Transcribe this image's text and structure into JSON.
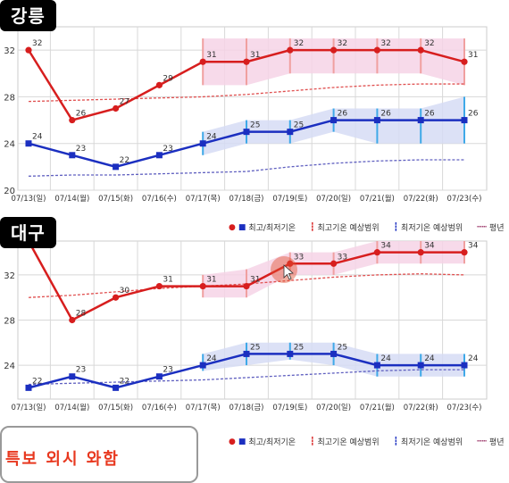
{
  "labels": {
    "top_city": "강릉",
    "bottom_city": "대구",
    "bottom_text": "특보 외시 와함",
    "legend": [
      "최고/최저기온",
      "최고기온 예상범위",
      "최저기온 예상범위",
      "평년"
    ]
  },
  "colors": {
    "max": "#d71e1e",
    "min": "#1b2fc0",
    "max_band": "#f6d4e6",
    "min_band": "#d6dcf5",
    "max_range": "#f0a0a0",
    "min_range": "#3fa9e8",
    "normal_max": "#e05050",
    "normal_min": "#6060c0"
  },
  "chart_data": [
    {
      "type": "line",
      "title": "강릉",
      "categories": [
        "07/13(일)",
        "07/14(월)",
        "07/15(화)",
        "07/16(수)",
        "07/17(목)",
        "07/18(금)",
        "07/19(토)",
        "07/20(일)",
        "07/21(월)",
        "07/22(화)",
        "07/23(수)"
      ],
      "ylim": [
        20,
        34
      ],
      "yticks": [
        20,
        24,
        28,
        32
      ],
      "grid": true,
      "series": [
        {
          "name": "최고/최저기온",
          "role": "max",
          "values": [
            32,
            26,
            27,
            29,
            31,
            31,
            32,
            32,
            32,
            32,
            31
          ]
        },
        {
          "name": "최고/최저기온",
          "role": "min",
          "values": [
            24,
            23,
            22,
            23,
            24,
            25,
            25,
            26,
            26,
            26,
            26
          ]
        },
        {
          "name": "평년",
          "role": "normal_max",
          "values": [
            27.6,
            27.7,
            27.8,
            27.9,
            28.0,
            28.2,
            28.5,
            28.8,
            29.0,
            29.1,
            29.1
          ]
        },
        {
          "name": "평년",
          "role": "normal_min",
          "values": [
            21.2,
            21.3,
            21.3,
            21.4,
            21.5,
            21.6,
            22.0,
            22.3,
            22.5,
            22.6,
            22.6
          ]
        }
      ],
      "max_range": [
        null,
        null,
        null,
        null,
        [
          29,
          33
        ],
        [
          29,
          33
        ],
        [
          30,
          33
        ],
        [
          30,
          33
        ],
        [
          30,
          33
        ],
        [
          30,
          33
        ],
        [
          29,
          33
        ]
      ],
      "min_range": [
        null,
        null,
        null,
        null,
        [
          23,
          25
        ],
        [
          24,
          26
        ],
        [
          24,
          26
        ],
        [
          25,
          27
        ],
        [
          24,
          27
        ],
        [
          24,
          27
        ],
        [
          24,
          28
        ]
      ]
    },
    {
      "type": "line",
      "title": "대구",
      "categories": [
        "07/13(일)",
        "07/14(월)",
        "07/15(화)",
        "07/16(수)",
        "07/17(목)",
        "07/18(금)",
        "07/19(토)",
        "07/20(일)",
        "07/21(월)",
        "07/22(화)",
        "07/23(수)"
      ],
      "ylim": [
        21,
        35
      ],
      "yticks": [
        24,
        28,
        32
      ],
      "grid": true,
      "series": [
        {
          "name": "최고/최저기온",
          "role": "max",
          "values": [
            35,
            28,
            30,
            31,
            31,
            31,
            33,
            33,
            34,
            34,
            34
          ]
        },
        {
          "name": "최고/최저기온",
          "role": "min",
          "values": [
            22,
            23,
            22,
            23,
            24,
            25,
            25,
            25,
            24,
            24,
            24
          ]
        },
        {
          "name": "평년",
          "role": "normal_max",
          "values": [
            30.0,
            30.2,
            30.5,
            30.8,
            31.0,
            31.2,
            31.5,
            31.8,
            32.0,
            32.1,
            32.0
          ]
        },
        {
          "name": "평년",
          "role": "normal_min",
          "values": [
            22.3,
            22.4,
            22.5,
            22.6,
            22.7,
            22.9,
            23.1,
            23.3,
            23.5,
            23.6,
            23.6
          ]
        }
      ],
      "max_range": [
        null,
        null,
        null,
        null,
        [
          30,
          32
        ],
        [
          30,
          32.5
        ],
        [
          32,
          34
        ],
        [
          32,
          34
        ],
        [
          33,
          35
        ],
        [
          33,
          35
        ],
        [
          33,
          35
        ]
      ],
      "min_range": [
        null,
        null,
        null,
        null,
        [
          23.5,
          25
        ],
        [
          24,
          26
        ],
        [
          24.5,
          26
        ],
        [
          24,
          26
        ],
        [
          23,
          25
        ],
        [
          23,
          25
        ],
        [
          23,
          25
        ]
      ]
    }
  ]
}
